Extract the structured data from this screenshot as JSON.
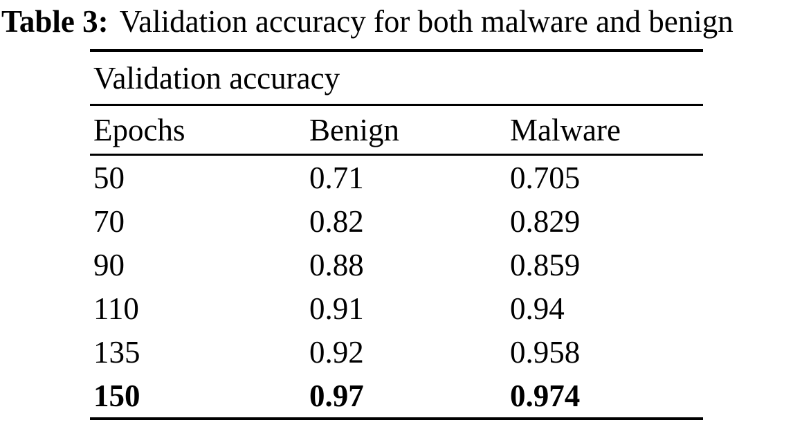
{
  "caption": {
    "label": "Table 3:",
    "text": "Validation accuracy for both malware and benign"
  },
  "table": {
    "title": "Validation accuracy",
    "columns": [
      "Epochs",
      "Benign",
      "Malware"
    ],
    "rows": [
      {
        "epochs": "50",
        "benign": "0.71",
        "malware": "0.705"
      },
      {
        "epochs": "70",
        "benign": "0.82",
        "malware": "0.829"
      },
      {
        "epochs": "90",
        "benign": "0.88",
        "malware": "0.859"
      },
      {
        "epochs": "110",
        "benign": "0.91",
        "malware": "0.94"
      },
      {
        "epochs": "135",
        "benign": "0.92",
        "malware": "0.958"
      },
      {
        "epochs": "150",
        "benign": "0.97",
        "malware": "0.974"
      }
    ],
    "bold_row_index": 5
  },
  "colors": {
    "text": "#000000",
    "background": "#ffffff",
    "rule": "#000000"
  },
  "chart_data": {
    "type": "table",
    "title": "Validation accuracy",
    "columns": [
      "Epochs",
      "Benign",
      "Malware"
    ],
    "rows": [
      [
        50,
        0.71,
        0.705
      ],
      [
        70,
        0.82,
        0.829
      ],
      [
        90,
        0.88,
        0.859
      ],
      [
        110,
        0.91,
        0.94
      ],
      [
        135,
        0.92,
        0.958
      ],
      [
        150,
        0.97,
        0.974
      ]
    ]
  }
}
